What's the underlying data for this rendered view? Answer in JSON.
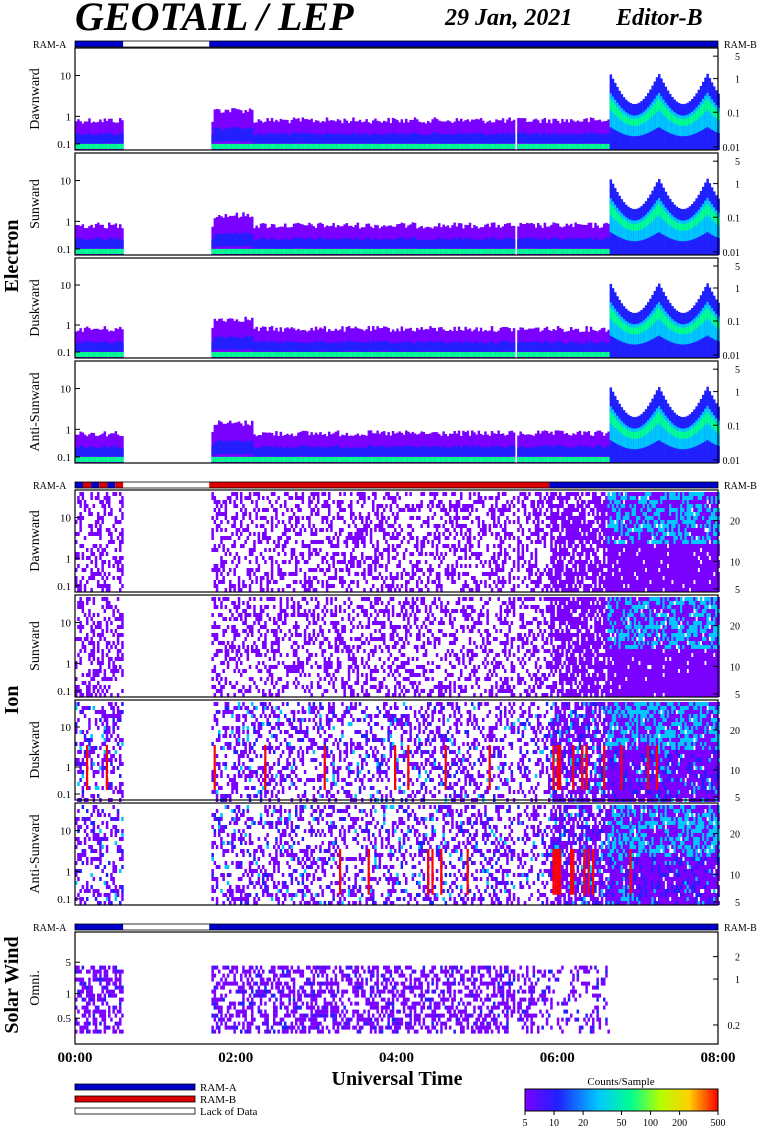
{
  "header": {
    "title": "GEOTAIL / LEP",
    "date": "29 Jan, 2021",
    "editor": "Editor-B"
  },
  "labels": {
    "ram_a": "RAM-A",
    "ram_b": "RAM-B",
    "electron": "Electron",
    "ion": "Ion",
    "solar_wind": "Solar Wind",
    "x_axis_title": "Universal Time"
  },
  "legend": {
    "ram_a": "RAM-A",
    "ram_b": "RAM-B",
    "lack": "Lack of Data",
    "colors": {
      "ram_a": "#0000cc",
      "ram_b": "#dd0000",
      "lack": "#ffffff"
    }
  },
  "colorbar": {
    "title": "Counts/Sample",
    "ticks": [
      "5",
      "10",
      "20",
      "50",
      "100",
      "200",
      "500"
    ],
    "tick_values": [
      5,
      10,
      20,
      50,
      100,
      200,
      500
    ],
    "range": [
      5,
      500
    ],
    "scale": "log",
    "colors": [
      "#7a00ff",
      "#2020ff",
      "#00c8ff",
      "#00ff90",
      "#b4ff00",
      "#ffd000",
      "#ff0000"
    ]
  },
  "chart_data": {
    "type": "heatmap",
    "x_ticks": [
      "00:00",
      "02:00",
      "04:00",
      "06:00",
      "08:00"
    ],
    "x_range_hours": [
      0,
      8
    ],
    "data_gaps_hours": [
      [
        0.6,
        1.67
      ],
      [
        5.45,
        5.48
      ]
    ],
    "groups": [
      {
        "group": "Electron",
        "ram_bar": [
          {
            "from": 0.0,
            "to": 0.6,
            "mode": "RAM-A"
          },
          {
            "from": 0.6,
            "to": 1.67,
            "mode": "Lack of Data"
          },
          {
            "from": 1.67,
            "to": 8.0,
            "mode": "RAM-A"
          }
        ],
        "left_ticks": [
          "10",
          "1",
          "0.1"
        ],
        "right_ticks": [
          "5",
          "1",
          "0.1",
          "0.01"
        ],
        "panels": [
          "Dawnward",
          "Sunward",
          "Duskward",
          "Anti-Sunward"
        ]
      },
      {
        "group": "Ion",
        "ram_bar": [
          {
            "from": 0.0,
            "to": 0.6,
            "mode": "RAM-A/RAM-B"
          },
          {
            "from": 0.6,
            "to": 1.67,
            "mode": "Lack of Data"
          },
          {
            "from": 1.67,
            "to": 5.9,
            "mode": "RAM-B"
          },
          {
            "from": 5.9,
            "to": 8.0,
            "mode": "RAM-A"
          }
        ],
        "left_ticks": [
          "10",
          "1",
          "0.1"
        ],
        "right_ticks": [
          "20",
          "10",
          "5"
        ],
        "panels": [
          "Dawnward",
          "Sunward",
          "Duskward",
          "Anti-Sunward"
        ]
      },
      {
        "group": "Solar Wind",
        "ram_bar": [
          {
            "from": 0.0,
            "to": 0.6,
            "mode": "RAM-A"
          },
          {
            "from": 0.6,
            "to": 1.67,
            "mode": "Lack of Data"
          },
          {
            "from": 1.67,
            "to": 8.0,
            "mode": "RAM-A"
          }
        ],
        "left_ticks": [
          "5",
          "1",
          "0.5"
        ],
        "right_ticks": [
          "2",
          "1",
          "0.2"
        ],
        "panels": [
          "Omni."
        ]
      }
    ]
  }
}
